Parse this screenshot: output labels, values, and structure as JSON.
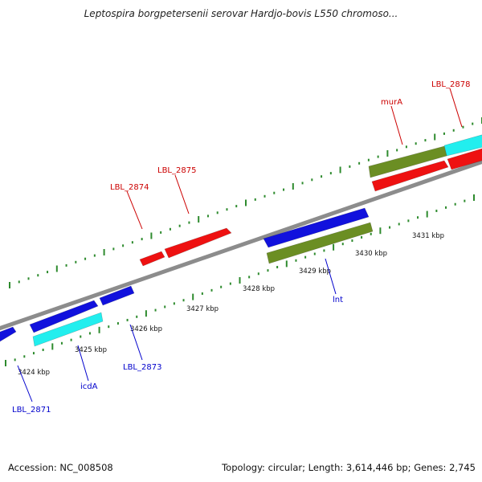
{
  "title": "Leptospira borgpetersenii serovar Hardjo-bovis L550 chromoso...",
  "footer": {
    "accession": "Accession: NC_008508",
    "summary": "Topology: circular; Length: 3,614,446 bp; Genes: 2,745"
  },
  "colors": {
    "backbone": "#8c8c8c",
    "tick": "#2e8b2e",
    "red": "#ee1111",
    "blue": "#1111dd",
    "cyan": "#22eeee",
    "olive": "#6b8e23",
    "label_top": "#cc0000",
    "label_bottom": "#0000cc"
  },
  "ruler_labels": [
    "3424 kbp",
    "3425 kbp",
    "3426 kbp",
    "3427 kbp",
    "3428 kbp",
    "3429 kbp",
    "3430 kbp",
    "3431 kbp"
  ],
  "gene_labels_top": [
    "LBL_2874",
    "LBL_2875",
    "murA",
    "LBL_2878"
  ],
  "gene_labels_bottom": [
    "LBL_2871",
    "icdA",
    "LBL_2873",
    "lnt"
  ]
}
